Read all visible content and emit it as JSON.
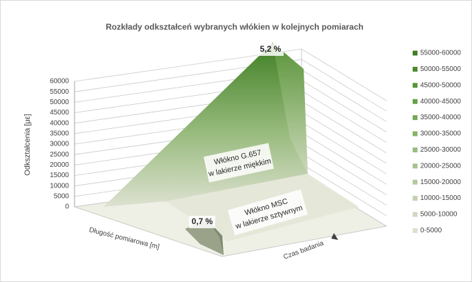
{
  "chart_data": {
    "type": "surface",
    "title": "Rozkłady odkształceń wybranych włókien w kolejnych pomiarach",
    "ylabel": "Odkształcenia [με]",
    "xlabel": "Długość pomiarowa [m]",
    "zlabel": "Czas badania",
    "ylim": [
      0,
      60000
    ],
    "yticks": [
      0,
      5000,
      10000,
      15000,
      20000,
      25000,
      30000,
      35000,
      40000,
      45000,
      50000,
      55000,
      60000
    ],
    "grid": true,
    "legend": "right",
    "series": [
      {
        "name": "55000-60000",
        "color": "#3f7f23"
      },
      {
        "name": "50000-55000",
        "color": "#4a8a2c"
      },
      {
        "name": "45000-50000",
        "color": "#589636"
      },
      {
        "name": "40000-45000",
        "color": "#66a044"
      },
      {
        "name": "35000-40000",
        "color": "#77a957"
      },
      {
        "name": "30000-35000",
        "color": "#87b26a"
      },
      {
        "name": "25000-30000",
        "color": "#98bb7e"
      },
      {
        "name": "20000-25000",
        "color": "#a7c28f"
      },
      {
        "name": "15000-20000",
        "color": "#b5caa0"
      },
      {
        "name": "10000-15000",
        "color": "#c3d1b1"
      },
      {
        "name": "5000-10000",
        "color": "#d0d8c1"
      },
      {
        "name": "0-5000",
        "color": "#dde1d0"
      }
    ],
    "annotations": [
      {
        "lines": [
          "5,2 %"
        ]
      },
      {
        "lines": [
          "0,7 %"
        ]
      },
      {
        "lines": [
          "Włókno G.657",
          "w lakierze miękkim"
        ]
      },
      {
        "lines": [
          "Włókno MSC",
          "w lakierze sztywnym"
        ]
      }
    ]
  }
}
